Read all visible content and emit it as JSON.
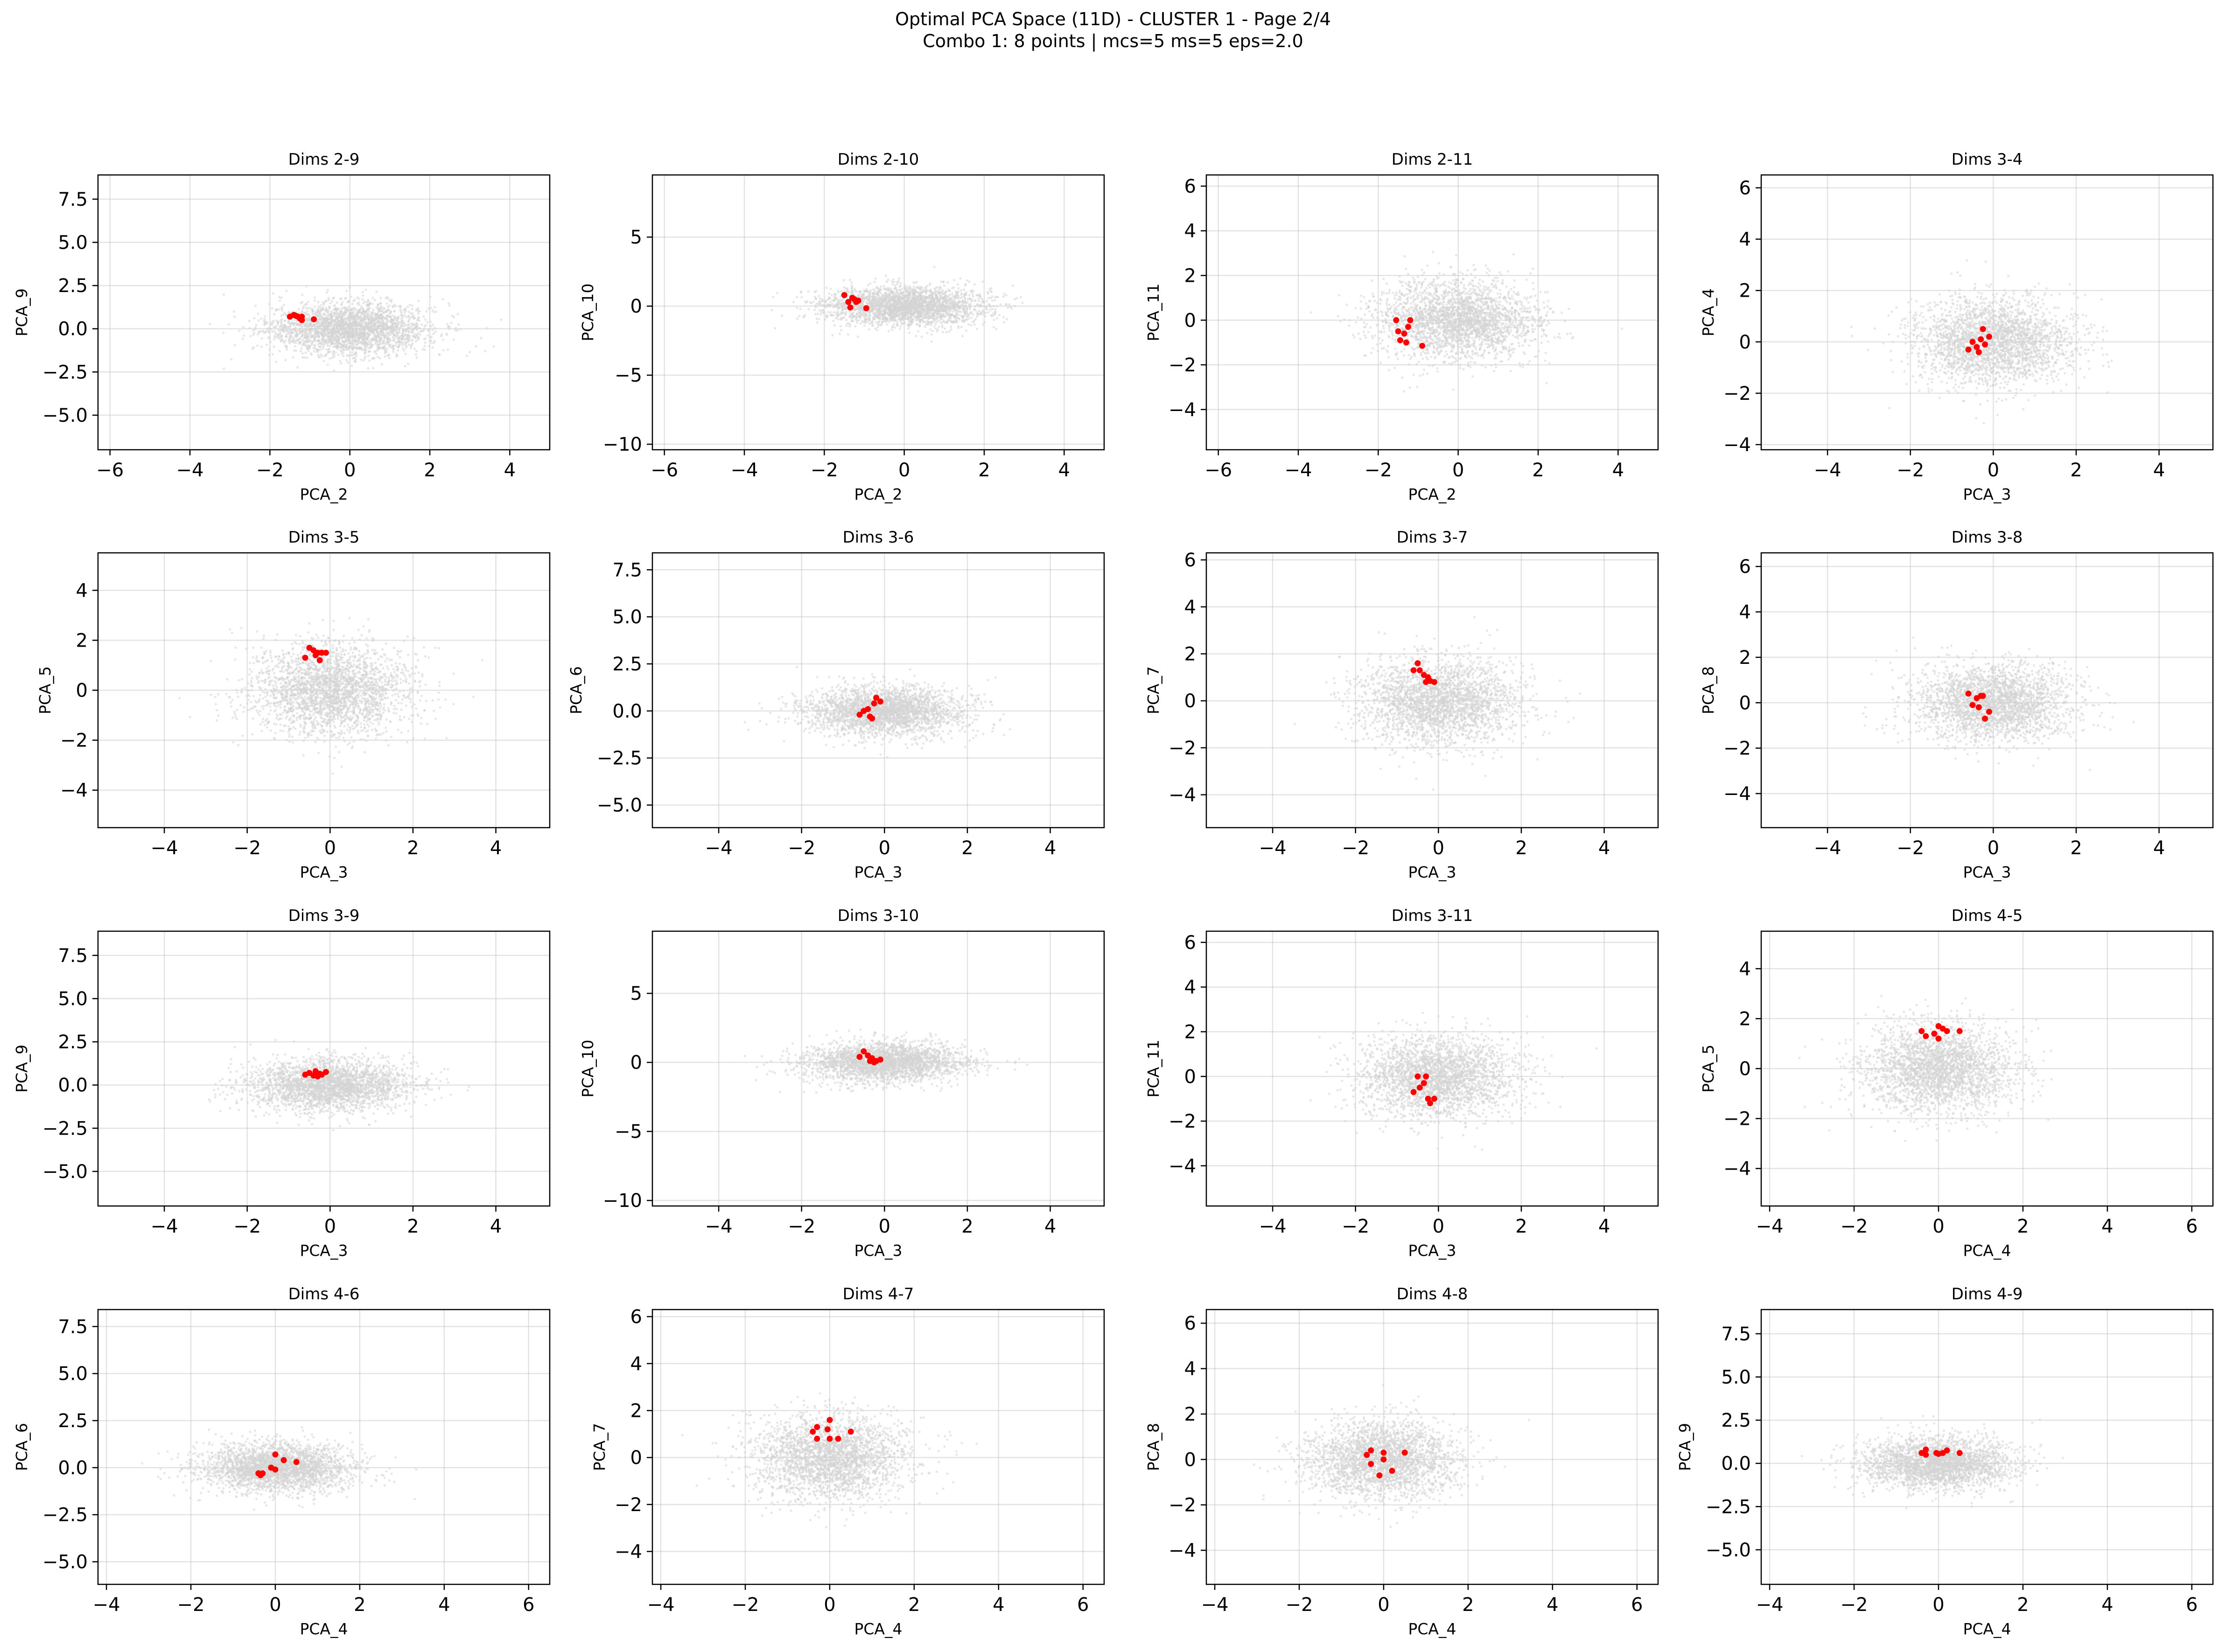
{
  "figure": {
    "title_line1": "Optimal PCA Space (11D) - CLUSTER 1 - Page 2/4",
    "title_line2": "Combo 1: 8 points | mcs=5 ms=5 eps=2.0",
    "background_color": "#d3d3d3",
    "cluster_color": "#ff0000",
    "grid": true
  },
  "chart_data": [
    {
      "type": "scatter",
      "title": "Dims 2-9",
      "xlabel": "PCA_2",
      "ylabel": "PCA_9",
      "xlim": [
        -6.3,
        5.0
      ],
      "ylim": [
        -7.0,
        8.9
      ],
      "xticks": [
        -6,
        -4,
        -2,
        0,
        2,
        4
      ],
      "yticks": [
        -5.0,
        -2.5,
        0.0,
        2.5,
        5.0,
        7.5
      ],
      "ytick_labels": [
        "−5.0",
        "−2.5",
        "0.0",
        "2.5",
        "5.0",
        "7.5"
      ],
      "background_spread": [
        1.0,
        0.75
      ],
      "cluster_points": [
        [
          -1.5,
          0.7
        ],
        [
          -1.4,
          0.8
        ],
        [
          -1.3,
          0.7
        ],
        [
          -1.2,
          0.7
        ],
        [
          -1.2,
          0.5
        ],
        [
          -1.25,
          0.6
        ],
        [
          -1.35,
          0.75
        ],
        [
          -0.9,
          0.55
        ]
      ]
    },
    {
      "type": "scatter",
      "title": "Dims 2-10",
      "xlabel": "PCA_2",
      "ylabel": "PCA_10",
      "xlim": [
        -6.3,
        5.0
      ],
      "ylim": [
        -10.4,
        9.5
      ],
      "xticks": [
        -6,
        -4,
        -2,
        0,
        2,
        4
      ],
      "yticks": [
        -10,
        -5,
        0,
        5
      ],
      "ytick_labels": [
        "−10",
        "−5",
        "0",
        "5"
      ],
      "background_spread": [
        1.0,
        0.7
      ],
      "cluster_points": [
        [
          -1.5,
          0.8
        ],
        [
          -1.4,
          0.3
        ],
        [
          -1.35,
          -0.1
        ],
        [
          -1.25,
          0.5
        ],
        [
          -1.2,
          0.3
        ],
        [
          -1.15,
          0.4
        ],
        [
          -1.3,
          0.6
        ],
        [
          -0.95,
          -0.15
        ]
      ]
    },
    {
      "type": "scatter",
      "title": "Dims 2-11",
      "xlabel": "PCA_2",
      "ylabel": "PCA_11",
      "xlim": [
        -6.3,
        5.0
      ],
      "ylim": [
        -5.8,
        6.5
      ],
      "xticks": [
        -6,
        -4,
        -2,
        0,
        2,
        4
      ],
      "yticks": [
        -4,
        -2,
        0,
        2,
        4,
        6
      ],
      "ytick_labels": [
        "−4",
        "−2",
        "0",
        "2",
        "4",
        "6"
      ],
      "background_spread": [
        1.0,
        0.9
      ],
      "cluster_points": [
        [
          -1.55,
          0.0
        ],
        [
          -1.5,
          -0.5
        ],
        [
          -1.45,
          -0.9
        ],
        [
          -1.35,
          -0.6
        ],
        [
          -1.25,
          -0.3
        ],
        [
          -1.3,
          -1.0
        ],
        [
          -1.2,
          0.0
        ],
        [
          -0.9,
          -1.15
        ]
      ]
    },
    {
      "type": "scatter",
      "title": "Dims 3-4",
      "xlabel": "PCA_3",
      "ylabel": "PCA_4",
      "xlim": [
        -5.6,
        5.3
      ],
      "ylim": [
        -4.2,
        6.5
      ],
      "xticks": [
        -4,
        -2,
        0,
        2,
        4
      ],
      "yticks": [
        -4,
        -2,
        0,
        2,
        4,
        6
      ],
      "ytick_labels": [
        "−4",
        "−2",
        "0",
        "2",
        "4",
        "6"
      ],
      "background_spread": [
        0.95,
        0.85
      ],
      "cluster_points": [
        [
          -0.6,
          -0.3
        ],
        [
          -0.5,
          0.0
        ],
        [
          -0.4,
          -0.2
        ],
        [
          -0.35,
          -0.4
        ],
        [
          -0.3,
          0.1
        ],
        [
          -0.25,
          0.5
        ],
        [
          -0.2,
          -0.1
        ],
        [
          -0.1,
          0.2
        ]
      ]
    },
    {
      "type": "scatter",
      "title": "Dims 3-5",
      "xlabel": "PCA_3",
      "ylabel": "PCA_5",
      "xlim": [
        -5.6,
        5.3
      ],
      "ylim": [
        -5.5,
        5.5
      ],
      "xticks": [
        -4,
        -2,
        0,
        2,
        4
      ],
      "yticks": [
        -4,
        -2,
        0,
        2,
        4
      ],
      "ytick_labels": [
        "−4",
        "−2",
        "0",
        "2",
        "4"
      ],
      "background_spread": [
        0.95,
        0.9
      ],
      "cluster_points": [
        [
          -0.6,
          1.3
        ],
        [
          -0.5,
          1.7
        ],
        [
          -0.4,
          1.6
        ],
        [
          -0.35,
          1.4
        ],
        [
          -0.3,
          1.5
        ],
        [
          -0.25,
          1.2
        ],
        [
          -0.2,
          1.5
        ],
        [
          -0.1,
          1.5
        ]
      ]
    },
    {
      "type": "scatter",
      "title": "Dims 3-6",
      "xlabel": "PCA_3",
      "ylabel": "PCA_6",
      "xlim": [
        -5.6,
        5.3
      ],
      "ylim": [
        -6.2,
        8.4
      ],
      "xticks": [
        -4,
        -2,
        0,
        2,
        4
      ],
      "yticks": [
        -5.0,
        -2.5,
        0.0,
        2.5,
        5.0,
        7.5
      ],
      "ytick_labels": [
        "−5.0",
        "−2.5",
        "0.0",
        "2.5",
        "5.0",
        "7.5"
      ],
      "background_spread": [
        0.95,
        0.65
      ],
      "cluster_points": [
        [
          -0.6,
          -0.2
        ],
        [
          -0.5,
          0.0
        ],
        [
          -0.4,
          0.1
        ],
        [
          -0.35,
          -0.3
        ],
        [
          -0.3,
          -0.4
        ],
        [
          -0.25,
          0.4
        ],
        [
          -0.2,
          0.7
        ],
        [
          -0.1,
          0.5
        ]
      ]
    },
    {
      "type": "scatter",
      "title": "Dims 3-7",
      "xlabel": "PCA_3",
      "ylabel": "PCA_7",
      "xlim": [
        -5.6,
        5.3
      ],
      "ylim": [
        -5.4,
        6.3
      ],
      "xticks": [
        -4,
        -2,
        0,
        2,
        4
      ],
      "yticks": [
        -4,
        -2,
        0,
        2,
        4,
        6
      ],
      "ytick_labels": [
        "−4",
        "−2",
        "0",
        "2",
        "4",
        "6"
      ],
      "background_spread": [
        0.95,
        0.9
      ],
      "cluster_points": [
        [
          -0.6,
          1.3
        ],
        [
          -0.5,
          1.6
        ],
        [
          -0.45,
          1.3
        ],
        [
          -0.35,
          1.1
        ],
        [
          -0.3,
          0.8
        ],
        [
          -0.25,
          1.0
        ],
        [
          -0.2,
          0.85
        ],
        [
          -0.1,
          0.8
        ]
      ]
    },
    {
      "type": "scatter",
      "title": "Dims 3-8",
      "xlabel": "PCA_3",
      "ylabel": "PCA_8",
      "xlim": [
        -5.6,
        5.3
      ],
      "ylim": [
        -5.5,
        6.6
      ],
      "xticks": [
        -4,
        -2,
        0,
        2,
        4
      ],
      "yticks": [
        -4,
        -2,
        0,
        2,
        4,
        6
      ],
      "ytick_labels": [
        "−4",
        "−2",
        "0",
        "2",
        "4",
        "6"
      ],
      "background_spread": [
        0.95,
        0.85
      ],
      "cluster_points": [
        [
          -0.6,
          0.4
        ],
        [
          -0.5,
          -0.1
        ],
        [
          -0.4,
          0.2
        ],
        [
          -0.35,
          -0.2
        ],
        [
          -0.3,
          0.3
        ],
        [
          -0.25,
          0.3
        ],
        [
          -0.2,
          -0.7
        ],
        [
          -0.1,
          -0.4
        ]
      ]
    },
    {
      "type": "scatter",
      "title": "Dims 3-9",
      "xlabel": "PCA_3",
      "ylabel": "PCA_9",
      "xlim": [
        -5.6,
        5.3
      ],
      "ylim": [
        -7.0,
        8.9
      ],
      "xticks": [
        -4,
        -2,
        0,
        2,
        4
      ],
      "yticks": [
        -5.0,
        -2.5,
        0.0,
        2.5,
        5.0,
        7.5
      ],
      "ytick_labels": [
        "−5.0",
        "−2.5",
        "0.0",
        "2.5",
        "5.0",
        "7.5"
      ],
      "background_spread": [
        0.95,
        0.75
      ],
      "cluster_points": [
        [
          -0.6,
          0.6
        ],
        [
          -0.5,
          0.7
        ],
        [
          -0.4,
          0.55
        ],
        [
          -0.35,
          0.8
        ],
        [
          -0.3,
          0.5
        ],
        [
          -0.25,
          0.65
        ],
        [
          -0.2,
          0.6
        ],
        [
          -0.1,
          0.75
        ]
      ]
    },
    {
      "type": "scatter",
      "title": "Dims 3-10",
      "xlabel": "PCA_3",
      "ylabel": "PCA_10",
      "xlim": [
        -5.6,
        5.3
      ],
      "ylim": [
        -10.4,
        9.5
      ],
      "xticks": [
        -4,
        -2,
        0,
        2,
        4
      ],
      "yticks": [
        -10,
        -5,
        0,
        5
      ],
      "ytick_labels": [
        "−10",
        "−5",
        "0",
        "5"
      ],
      "background_spread": [
        0.95,
        0.7
      ],
      "cluster_points": [
        [
          -0.6,
          0.4
        ],
        [
          -0.5,
          0.8
        ],
        [
          -0.4,
          0.5
        ],
        [
          -0.35,
          0.1
        ],
        [
          -0.3,
          0.3
        ],
        [
          -0.25,
          0.0
        ],
        [
          -0.2,
          0.1
        ],
        [
          -0.1,
          0.2
        ]
      ]
    },
    {
      "type": "scatter",
      "title": "Dims 3-11",
      "xlabel": "PCA_3",
      "ylabel": "PCA_11",
      "xlim": [
        -5.6,
        5.3
      ],
      "ylim": [
        -5.8,
        6.5
      ],
      "xticks": [
        -4,
        -2,
        0,
        2,
        4
      ],
      "yticks": [
        -4,
        -2,
        0,
        2,
        4,
        6
      ],
      "ytick_labels": [
        "−4",
        "−2",
        "0",
        "2",
        "4",
        "6"
      ],
      "background_spread": [
        0.95,
        0.9
      ],
      "cluster_points": [
        [
          -0.6,
          -0.7
        ],
        [
          -0.5,
          0.0
        ],
        [
          -0.45,
          -0.5
        ],
        [
          -0.35,
          -0.3
        ],
        [
          -0.3,
          0.0
        ],
        [
          -0.25,
          -1.0
        ],
        [
          -0.2,
          -1.2
        ],
        [
          -0.1,
          -1.0
        ]
      ]
    },
    {
      "type": "scatter",
      "title": "Dims 4-5",
      "xlabel": "PCA_4",
      "ylabel": "PCA_5",
      "xlim": [
        -4.2,
        6.5
      ],
      "ylim": [
        -5.5,
        5.5
      ],
      "xticks": [
        -4,
        -2,
        0,
        2,
        4,
        6
      ],
      "yticks": [
        -4,
        -2,
        0,
        2,
        4
      ],
      "ytick_labels": [
        "−4",
        "−2",
        "0",
        "2",
        "4"
      ],
      "background_spread": [
        0.9,
        0.9
      ],
      "cluster_points": [
        [
          -0.4,
          1.5
        ],
        [
          -0.3,
          1.3
        ],
        [
          -0.1,
          1.4
        ],
        [
          0.0,
          1.2
        ],
        [
          0.0,
          1.7
        ],
        [
          0.1,
          1.6
        ],
        [
          0.2,
          1.5
        ],
        [
          0.5,
          1.5
        ]
      ]
    },
    {
      "type": "scatter",
      "title": "Dims 4-6",
      "xlabel": "PCA_4",
      "ylabel": "PCA_6",
      "xlim": [
        -4.2,
        6.5
      ],
      "ylim": [
        -6.2,
        8.4
      ],
      "xticks": [
        -4,
        -2,
        0,
        2,
        4,
        6
      ],
      "yticks": [
        -5.0,
        -2.5,
        0.0,
        2.5,
        5.0,
        7.5
      ],
      "ytick_labels": [
        "−5.0",
        "−2.5",
        "0.0",
        "2.5",
        "5.0",
        "7.5"
      ],
      "background_spread": [
        0.9,
        0.65
      ],
      "cluster_points": [
        [
          -0.4,
          -0.3
        ],
        [
          -0.35,
          -0.4
        ],
        [
          -0.3,
          -0.3
        ],
        [
          -0.1,
          0.0
        ],
        [
          0.0,
          0.7
        ],
        [
          0.0,
          -0.1
        ],
        [
          0.2,
          0.4
        ],
        [
          0.5,
          0.3
        ]
      ]
    },
    {
      "type": "scatter",
      "title": "Dims 4-7",
      "xlabel": "PCA_4",
      "ylabel": "PCA_7",
      "xlim": [
        -4.2,
        6.5
      ],
      "ylim": [
        -5.4,
        6.3
      ],
      "xticks": [
        -4,
        -2,
        0,
        2,
        4,
        6
      ],
      "yticks": [
        -4,
        -2,
        0,
        2,
        4,
        6
      ],
      "ytick_labels": [
        "−4",
        "−2",
        "0",
        "2",
        "4",
        "6"
      ],
      "background_spread": [
        0.9,
        0.9
      ],
      "cluster_points": [
        [
          -0.4,
          1.1
        ],
        [
          -0.3,
          0.8
        ],
        [
          -0.3,
          1.3
        ],
        [
          -0.05,
          1.2
        ],
        [
          0.0,
          0.8
        ],
        [
          0.0,
          1.6
        ],
        [
          0.2,
          0.8
        ],
        [
          0.5,
          1.1
        ]
      ]
    },
    {
      "type": "scatter",
      "title": "Dims 4-8",
      "xlabel": "PCA_4",
      "ylabel": "PCA_8",
      "xlim": [
        -4.2,
        6.5
      ],
      "ylim": [
        -5.5,
        6.6
      ],
      "xticks": [
        -4,
        -2,
        0,
        2,
        4,
        6
      ],
      "yticks": [
        -4,
        -2,
        0,
        2,
        4,
        6
      ],
      "ytick_labels": [
        "−4",
        "−2",
        "0",
        "2",
        "4",
        "6"
      ],
      "background_spread": [
        0.9,
        0.85
      ],
      "cluster_points": [
        [
          -0.4,
          0.2
        ],
        [
          -0.3,
          0.4
        ],
        [
          -0.3,
          -0.2
        ],
        [
          -0.1,
          -0.7
        ],
        [
          0.0,
          0.3
        ],
        [
          0.0,
          0.0
        ],
        [
          0.2,
          -0.5
        ],
        [
          0.5,
          0.3
        ]
      ]
    },
    {
      "type": "scatter",
      "title": "Dims 4-9",
      "xlabel": "PCA_4",
      "ylabel": "PCA_9",
      "xlim": [
        -4.2,
        6.5
      ],
      "ylim": [
        -7.0,
        8.9
      ],
      "xticks": [
        -4,
        -2,
        0,
        2,
        4,
        6
      ],
      "yticks": [
        -5.0,
        -2.5,
        0.0,
        2.5,
        5.0,
        7.5
      ],
      "ytick_labels": [
        "−5.0",
        "−2.5",
        "0.0",
        "2.5",
        "5.0",
        "7.5"
      ],
      "background_spread": [
        0.9,
        0.75
      ],
      "cluster_points": [
        [
          -0.4,
          0.6
        ],
        [
          -0.3,
          0.8
        ],
        [
          -0.3,
          0.5
        ],
        [
          -0.05,
          0.6
        ],
        [
          0.0,
          0.55
        ],
        [
          0.1,
          0.6
        ],
        [
          0.2,
          0.75
        ],
        [
          0.5,
          0.6
        ]
      ]
    }
  ]
}
